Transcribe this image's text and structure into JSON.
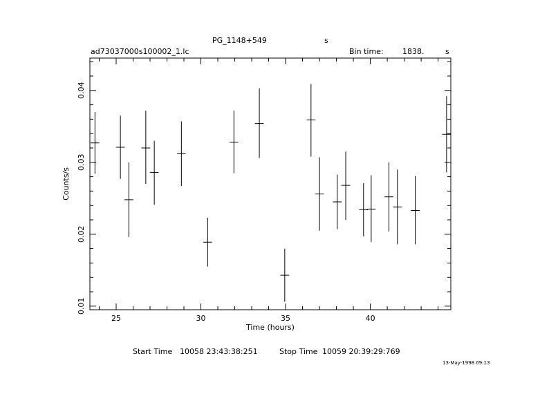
{
  "header": {
    "object_name": "PG_1148+549",
    "object_unit": "s",
    "file_name": "ad73037000s100002_1.lc",
    "bin_time_label": "Bin time:",
    "bin_time_value": "1838.",
    "bin_time_unit": "s"
  },
  "footer": {
    "start_label": "Start Time",
    "start_value": "10058 23:43:38:251",
    "stop_label": "Stop Time",
    "stop_value": "10059 20:39:29:769",
    "timestamp": "13-May-1998 09:13"
  },
  "chart_data": {
    "type": "scatter",
    "title": "",
    "xlabel": "Time (hours)",
    "ylabel": "Counts/s",
    "xlim": [
      23.45,
      44.75
    ],
    "ylim": [
      0.0095,
      0.0445
    ],
    "xticks": [
      25,
      30,
      35,
      40
    ],
    "yticks": [
      0.01,
      0.02,
      0.03,
      0.04
    ],
    "ytick_labels": [
      "0.01",
      "0.02",
      "0.03",
      "0.04"
    ],
    "grid": false,
    "series": [
      {
        "points": [
          {
            "x": 23.75,
            "xerr": 0.26,
            "y": 0.0327,
            "ylo": 0.0284,
            "yhi": 0.037
          },
          {
            "x": 25.25,
            "xerr": 0.26,
            "y": 0.0321,
            "ylo": 0.0277,
            "yhi": 0.0365
          },
          {
            "x": 25.75,
            "xerr": 0.26,
            "y": 0.0248,
            "ylo": 0.0196,
            "yhi": 0.03
          },
          {
            "x": 26.75,
            "xerr": 0.26,
            "y": 0.032,
            "ylo": 0.027,
            "yhi": 0.0372
          },
          {
            "x": 27.25,
            "xerr": 0.26,
            "y": 0.0286,
            "ylo": 0.0241,
            "yhi": 0.033
          },
          {
            "x": 28.85,
            "xerr": 0.26,
            "y": 0.0312,
            "ylo": 0.0267,
            "yhi": 0.0357
          },
          {
            "x": 30.4,
            "xerr": 0.26,
            "y": 0.0189,
            "ylo": 0.0155,
            "yhi": 0.0223
          },
          {
            "x": 31.95,
            "xerr": 0.26,
            "y": 0.0328,
            "ylo": 0.0285,
            "yhi": 0.0372
          },
          {
            "x": 33.45,
            "xerr": 0.26,
            "y": 0.0354,
            "ylo": 0.0306,
            "yhi": 0.0403
          },
          {
            "x": 34.95,
            "xerr": 0.26,
            "y": 0.0143,
            "ylo": 0.0106,
            "yhi": 0.018
          },
          {
            "x": 36.5,
            "xerr": 0.26,
            "y": 0.0359,
            "ylo": 0.0308,
            "yhi": 0.0409
          },
          {
            "x": 37.0,
            "xerr": 0.26,
            "y": 0.0256,
            "ylo": 0.0205,
            "yhi": 0.0307
          },
          {
            "x": 38.05,
            "xerr": 0.26,
            "y": 0.0245,
            "ylo": 0.0207,
            "yhi": 0.0283
          },
          {
            "x": 38.55,
            "xerr": 0.26,
            "y": 0.0268,
            "ylo": 0.022,
            "yhi": 0.0315
          },
          {
            "x": 39.6,
            "xerr": 0.26,
            "y": 0.0234,
            "ylo": 0.0197,
            "yhi": 0.0271
          },
          {
            "x": 40.05,
            "xerr": 0.26,
            "y": 0.0235,
            "ylo": 0.0189,
            "yhi": 0.0282
          },
          {
            "x": 41.1,
            "xerr": 0.26,
            "y": 0.0252,
            "ylo": 0.0204,
            "yhi": 0.03
          },
          {
            "x": 41.6,
            "xerr": 0.26,
            "y": 0.0238,
            "ylo": 0.0186,
            "yhi": 0.029
          },
          {
            "x": 42.65,
            "xerr": 0.26,
            "y": 0.0233,
            "ylo": 0.0186,
            "yhi": 0.0281
          },
          {
            "x": 44.5,
            "xerr": 0.26,
            "y": 0.0339,
            "ylo": 0.0286,
            "yhi": 0.0392
          }
        ]
      }
    ]
  }
}
